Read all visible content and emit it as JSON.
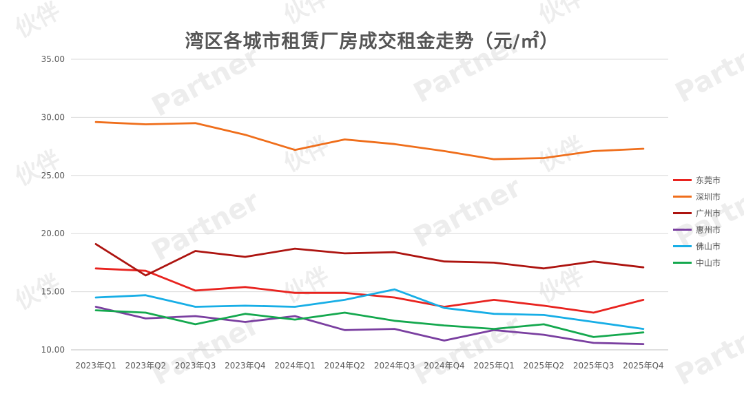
{
  "chart_data": {
    "type": "line",
    "title": "湾区各城市租赁厂房成交租金走势（元/㎡）",
    "xlabel": "",
    "ylabel": "",
    "ylim": [
      10,
      35
    ],
    "y_ticks": [
      "10.00",
      "15.00",
      "20.00",
      "25.00",
      "30.00",
      "35.00"
    ],
    "grid": true,
    "legend_position": "right",
    "categories": [
      "2023年Q1",
      "2023年Q2",
      "2023年Q3",
      "2023年Q4",
      "2024年Q1",
      "2024年Q2",
      "2024年Q3",
      "2024年Q4",
      "2025年Q1",
      "2025年Q2",
      "2025年Q3",
      "2025年Q4"
    ],
    "series": [
      {
        "name": "东莞市",
        "color": "#e8231f",
        "values": [
          17.0,
          16.8,
          15.1,
          15.4,
          14.9,
          14.9,
          14.5,
          13.7,
          14.3,
          13.8,
          13.2,
          14.3
        ]
      },
      {
        "name": "深圳市",
        "color": "#ef6e1b",
        "values": [
          29.6,
          29.4,
          29.5,
          28.5,
          27.2,
          28.1,
          27.7,
          27.1,
          26.4,
          26.5,
          27.1,
          27.3
        ]
      },
      {
        "name": "广州市",
        "color": "#ad1410",
        "values": [
          19.1,
          16.4,
          18.5,
          18.0,
          18.7,
          18.3,
          18.4,
          17.6,
          17.5,
          17.0,
          17.6,
          17.1
        ]
      },
      {
        "name": "惠州市",
        "color": "#7a3fa0",
        "values": [
          13.7,
          12.7,
          12.9,
          12.4,
          12.9,
          11.7,
          11.8,
          10.8,
          11.7,
          11.3,
          10.6,
          10.5
        ]
      },
      {
        "name": "佛山市",
        "color": "#17aee6",
        "values": [
          14.5,
          14.7,
          13.7,
          13.8,
          13.7,
          14.3,
          15.2,
          13.6,
          13.1,
          13.0,
          12.4,
          11.8
        ]
      },
      {
        "name": "中山市",
        "color": "#14a84e",
        "values": [
          13.4,
          13.2,
          12.2,
          13.1,
          12.6,
          13.2,
          12.5,
          12.1,
          11.8,
          12.2,
          11.1,
          11.5
        ]
      }
    ]
  },
  "watermark": {
    "brand_cn": "伙伴",
    "brand_en": "Partner"
  }
}
